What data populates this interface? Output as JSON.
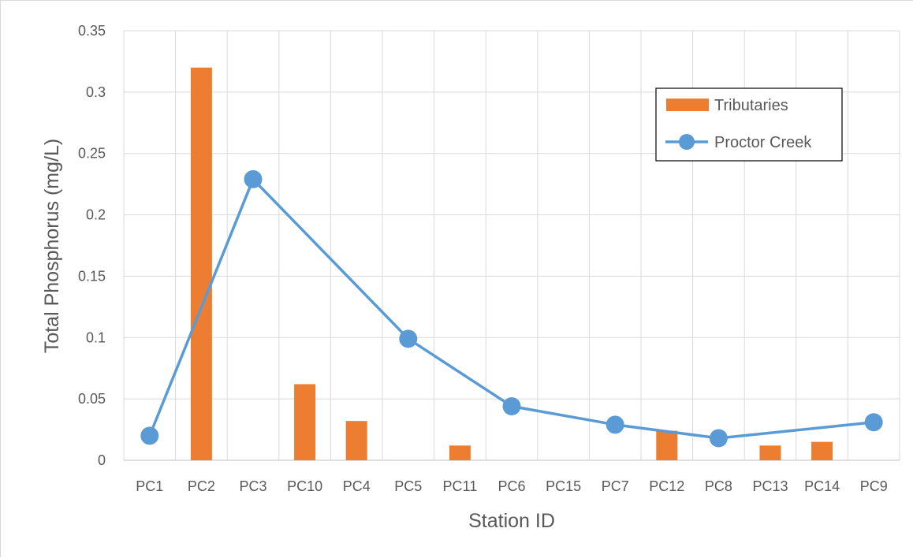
{
  "chart_data": {
    "type": "bar+line",
    "categories": [
      "PC1",
      "PC2",
      "PC3",
      "PC10",
      "PC4",
      "PC5",
      "PC11",
      "PC6",
      "PC15",
      "PC7",
      "PC12",
      "PC8",
      "PC13",
      "PC14",
      "PC9"
    ],
    "series": [
      {
        "name": "Tributaries",
        "type": "bar",
        "color": "#ed7d31",
        "values": [
          null,
          0.32,
          null,
          0.062,
          0.032,
          null,
          0.012,
          null,
          null,
          null,
          0.024,
          null,
          0.012,
          0.015,
          null
        ]
      },
      {
        "name": "Proctor Creek",
        "type": "line",
        "color": "#5b9bd5",
        "values": [
          0.02,
          null,
          0.229,
          null,
          null,
          0.099,
          null,
          0.044,
          null,
          0.029,
          null,
          0.018,
          null,
          null,
          0.031
        ]
      }
    ],
    "xlabel": "Station ID",
    "ylabel": "Total Phosphorus (mg/L)",
    "ylim": [
      0,
      0.35
    ],
    "yticks": [
      "0",
      "0.05",
      "0.1",
      "0.15",
      "0.2",
      "0.25",
      "0.3",
      "0.35"
    ],
    "grid": true,
    "legend_position": "top-right"
  }
}
